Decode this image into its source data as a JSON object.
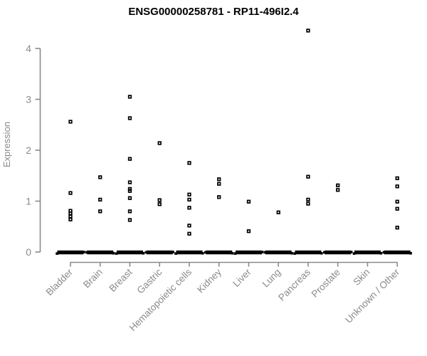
{
  "title": "ENSG00000258781 - RP11-496I2.4",
  "colors": {
    "points": "#000000",
    "axis": "#8a8a8a",
    "title": "#000000",
    "background": "#ffffff"
  },
  "chart_data": {
    "type": "scatter",
    "subtype": "strip-plot-by-category",
    "title": "ENSG00000258781 - RP11-496I2.4",
    "xlabel": "",
    "ylabel": "Expression",
    "ylim": [
      0,
      4.4
    ],
    "yticks": [
      0,
      1,
      2,
      3,
      4
    ],
    "grid": false,
    "legend": "none",
    "marker": "open-square",
    "categories": [
      "Bladder",
      "Brain",
      "Breast",
      "Gastric",
      "Hematopoietic cells",
      "Kidney",
      "Liver",
      "Lung",
      "Pancreas",
      "Prostate",
      "Skin",
      "Unknown / Other"
    ],
    "series": [
      {
        "name": "Bladder",
        "values": [
          2.56,
          1.16,
          0.81,
          0.76,
          0.7,
          0.64
        ]
      },
      {
        "name": "Brain",
        "values": [
          1.47,
          1.03,
          0.8
        ]
      },
      {
        "name": "Breast",
        "values": [
          3.05,
          2.63,
          1.83,
          1.37,
          1.24,
          1.2,
          1.06,
          0.8,
          0.63
        ]
      },
      {
        "name": "Gastric",
        "values": [
          2.14,
          1.02,
          0.94
        ]
      },
      {
        "name": "Hematopoietic cells",
        "values": [
          1.75,
          1.13,
          1.03,
          0.87,
          0.52,
          0.36
        ]
      },
      {
        "name": "Kidney",
        "values": [
          1.43,
          1.34,
          1.08
        ]
      },
      {
        "name": "Liver",
        "values": [
          0.99,
          0.41
        ]
      },
      {
        "name": "Lung",
        "values": [
          0.78
        ]
      },
      {
        "name": "Pancreas",
        "values": [
          4.35,
          1.48,
          1.03,
          0.95
        ]
      },
      {
        "name": "Prostate",
        "values": [
          1.31,
          1.22
        ]
      },
      {
        "name": "Skin",
        "values": []
      },
      {
        "name": "Unknown / Other",
        "values": [
          1.45,
          1.29,
          0.99,
          0.85,
          0.48
        ]
      }
    ],
    "zero_cluster_note": "Every category additionally shows a dense horizontal cluster of many overlapping points at Expression = 0, rendered as a thick black dash."
  }
}
